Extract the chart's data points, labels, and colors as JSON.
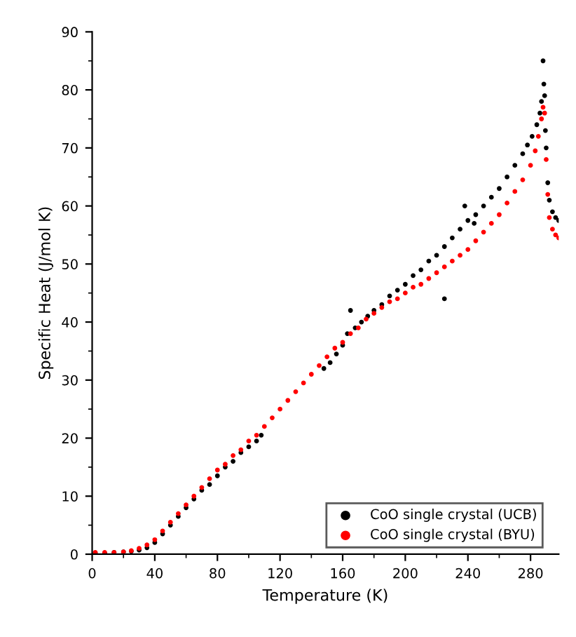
{
  "chart_data": {
    "type": "scatter",
    "xlabel": "Temperature (K)",
    "ylabel": "Specific Heat (J/mol K)",
    "xlim": [
      0,
      298
    ],
    "ylim": [
      0,
      90
    ],
    "xticks": [
      0,
      40,
      80,
      120,
      160,
      200,
      240,
      280
    ],
    "yticks": [
      0,
      10,
      20,
      30,
      40,
      50,
      60,
      70,
      80,
      90
    ],
    "grid": false,
    "legend": "bottom right",
    "marker": "circle",
    "series": [
      {
        "name": "CoO single crystal (UCB)",
        "color": "#000000",
        "x": [
          2,
          8,
          14,
          20,
          25,
          30,
          35,
          40,
          45,
          50,
          55,
          60,
          65,
          70,
          75,
          80,
          85,
          90,
          95,
          100,
          105,
          108,
          148,
          152,
          156,
          160,
          163,
          165,
          168,
          172,
          176,
          180,
          185,
          190,
          195,
          200,
          205,
          210,
          215,
          220,
          225,
          225,
          230,
          235,
          238,
          240,
          244,
          245,
          250,
          255,
          260,
          265,
          270,
          275,
          278,
          281,
          284,
          286,
          287,
          288,
          288.5,
          289,
          289.5,
          290,
          291,
          292,
          294,
          296,
          298
        ],
        "values": [
          0.2,
          0.2,
          0.3,
          0.4,
          0.5,
          0.7,
          1.1,
          2,
          3.5,
          5,
          6.5,
          8,
          9.5,
          11,
          12,
          13.5,
          15,
          16,
          17.5,
          18.5,
          19.5,
          20.5,
          32,
          33,
          34.5,
          36,
          38,
          42,
          39,
          40,
          41,
          42,
          43,
          44.5,
          45.5,
          46.5,
          48,
          49,
          50.5,
          51.5,
          44,
          53,
          54.5,
          56,
          60,
          57.5,
          57,
          58.5,
          60,
          61.5,
          63,
          65,
          67,
          69,
          70.5,
          72,
          74,
          76,
          78,
          85,
          81,
          79,
          73,
          70,
          64,
          61,
          59,
          58,
          57.5
        ]
      },
      {
        "name": "CoO single crystal (BYU)",
        "color": "#ff0000",
        "x": [
          2,
          8,
          14,
          20,
          25,
          30,
          35,
          40,
          45,
          50,
          55,
          60,
          65,
          70,
          75,
          80,
          85,
          90,
          95,
          100,
          105,
          110,
          115,
          120,
          125,
          130,
          135,
          140,
          145,
          150,
          155,
          160,
          165,
          170,
          175,
          180,
          185,
          190,
          195,
          200,
          205,
          210,
          215,
          220,
          225,
          230,
          235,
          240,
          245,
          250,
          255,
          260,
          265,
          270,
          275,
          280,
          283,
          285,
          287,
          288,
          289,
          290,
          291,
          292,
          294,
          296,
          298
        ],
        "values": [
          0.3,
          0.3,
          0.3,
          0.4,
          0.6,
          1,
          1.6,
          2.5,
          4,
          5.5,
          7,
          8.5,
          10,
          11.5,
          13,
          14.5,
          15.5,
          17,
          18,
          19.5,
          20.5,
          22,
          23.5,
          25,
          26.5,
          28,
          29.5,
          31,
          32.5,
          34,
          35.5,
          36.5,
          38,
          39,
          40.5,
          41.5,
          42.5,
          43.5,
          44,
          45,
          46,
          46.5,
          47.5,
          48.5,
          49.5,
          50.5,
          51.5,
          52.5,
          54,
          55.5,
          57,
          58.5,
          60.5,
          62.5,
          64.5,
          67,
          69.5,
          72,
          75,
          77,
          76,
          68,
          62,
          58,
          56,
          55,
          54.5
        ]
      }
    ]
  }
}
